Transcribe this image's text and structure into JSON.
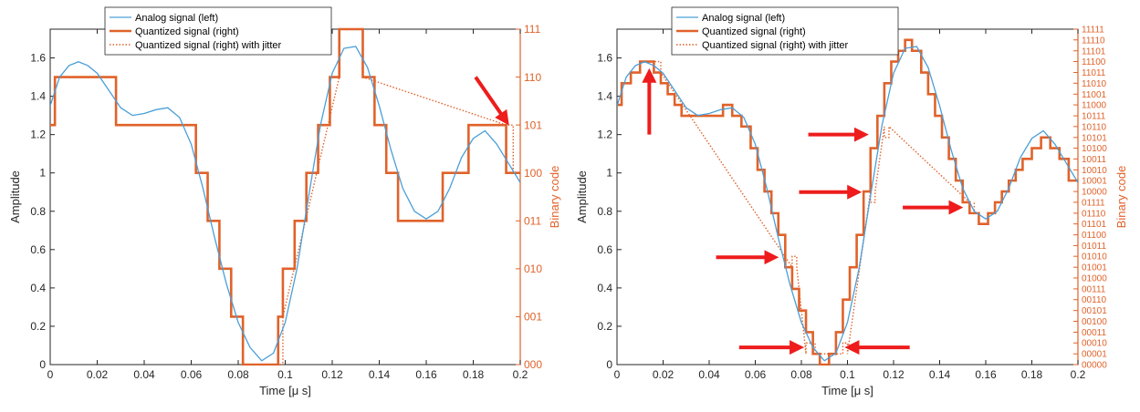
{
  "colors": {
    "analog": "#4a9fd8",
    "quantized": "#e0622a",
    "right_axis": "#e0622a",
    "axis": "#262626",
    "arrow": "#ee1c1c"
  },
  "chart_data": [
    {
      "type": "line",
      "panel": "left",
      "xlabel": "Time [μ s]",
      "ylabel": "Amplitude",
      "ylabel_right": "Binary code",
      "xlim": [
        0,
        0.2
      ],
      "ylim": [
        0,
        1.75
      ],
      "grid": false,
      "legend_position": "top-left",
      "x_ticks": [
        "0",
        "0.02",
        "0.04",
        "0.06",
        "0.08",
        "0.1",
        "0.12",
        "0.14",
        "0.16",
        "0.18",
        "0.2"
      ],
      "x_tick_values": [
        0,
        0.02,
        0.04,
        0.06,
        0.08,
        0.1,
        0.12,
        0.14,
        0.16,
        0.18,
        0.2
      ],
      "y_ticks": [
        "0",
        "0.2",
        "0.4",
        "0.6",
        "0.8",
        "1",
        "1.2",
        "1.4",
        "1.6"
      ],
      "y_tick_values": [
        0,
        0.2,
        0.4,
        0.6,
        0.8,
        1,
        1.2,
        1.4,
        1.6
      ],
      "right_ticks": [
        "000",
        "001",
        "010",
        "011",
        "100",
        "101",
        "110",
        "111"
      ],
      "right_tick_values": [
        0,
        0.25,
        0.5,
        0.75,
        1.0,
        1.25,
        1.5,
        1.75
      ],
      "series": [
        {
          "name": "Analog signal (left)",
          "style": "solid-thin",
          "x": [
            0,
            0.004,
            0.008,
            0.012,
            0.016,
            0.02,
            0.025,
            0.03,
            0.035,
            0.04,
            0.045,
            0.05,
            0.055,
            0.06,
            0.065,
            0.07,
            0.075,
            0.08,
            0.085,
            0.09,
            0.095,
            0.1,
            0.105,
            0.11,
            0.115,
            0.12,
            0.125,
            0.13,
            0.135,
            0.14,
            0.145,
            0.15,
            0.155,
            0.16,
            0.165,
            0.17,
            0.175,
            0.18,
            0.185,
            0.19,
            0.195,
            0.2
          ],
          "y": [
            1.35,
            1.5,
            1.56,
            1.58,
            1.56,
            1.52,
            1.43,
            1.34,
            1.3,
            1.31,
            1.33,
            1.34,
            1.29,
            1.15,
            0.92,
            0.66,
            0.42,
            0.22,
            0.09,
            0.02,
            0.06,
            0.22,
            0.5,
            0.88,
            1.25,
            1.52,
            1.65,
            1.66,
            1.55,
            1.35,
            1.12,
            0.92,
            0.8,
            0.76,
            0.8,
            0.92,
            1.08,
            1.18,
            1.22,
            1.15,
            1.05,
            0.95
          ]
        },
        {
          "name": "Quantized signal (right)",
          "style": "solid-thick",
          "x": [
            0,
            0.002,
            0.002,
            0.028,
            0.028,
            0.062,
            0.062,
            0.067,
            0.067,
            0.072,
            0.072,
            0.077,
            0.077,
            0.082,
            0.082,
            0.084,
            0.084,
            0.097,
            0.097,
            0.099,
            0.099,
            0.104,
            0.104,
            0.109,
            0.109,
            0.114,
            0.114,
            0.119,
            0.119,
            0.123,
            0.123,
            0.133,
            0.133,
            0.138,
            0.138,
            0.143,
            0.143,
            0.148,
            0.148,
            0.167,
            0.167,
            0.178,
            0.178,
            0.194,
            0.194,
            0.2
          ],
          "y": [
            1.25,
            1.25,
            1.5,
            1.5,
            1.25,
            1.25,
            1.0,
            1.0,
            0.75,
            0.75,
            0.5,
            0.5,
            0.25,
            0.25,
            0.0,
            0.0,
            0.0,
            0.0,
            0.25,
            0.25,
            0.5,
            0.5,
            0.75,
            0.75,
            1.0,
            1.0,
            1.25,
            1.25,
            1.5,
            1.5,
            1.75,
            1.75,
            1.5,
            1.5,
            1.25,
            1.25,
            1.0,
            1.0,
            0.75,
            0.75,
            1.0,
            1.0,
            1.25,
            1.25,
            1.0,
            1.0
          ]
        },
        {
          "name": "Quantized signal (right) with jitter",
          "style": "dotted",
          "x": [
            0.082,
            0.082,
            0.099,
            0.099,
            0.123,
            0.123,
            0.133,
            0.133,
            0.194,
            0.194,
            0.197,
            0.197
          ],
          "y": [
            0.25,
            0.0,
            0.0,
            0.25,
            1.5,
            1.75,
            1.75,
            1.5,
            1.25,
            1.25,
            1.25,
            1.0
          ]
        }
      ],
      "annotations": [
        {
          "type": "arrow",
          "from": [
            0.181,
            1.5
          ],
          "to": [
            0.194,
            1.27
          ]
        }
      ]
    },
    {
      "type": "line",
      "panel": "right",
      "xlabel": "Time [μ s]",
      "ylabel": "Amplitude",
      "ylabel_right": "Binary code",
      "xlim": [
        0,
        0.2
      ],
      "ylim": [
        0,
        1.75
      ],
      "grid": false,
      "legend_position": "top-left",
      "x_ticks": [
        "0",
        "0.02",
        "0.04",
        "0.06",
        "0.08",
        "0.1",
        "0.12",
        "0.14",
        "0.16",
        "0.18",
        "0.2"
      ],
      "x_tick_values": [
        0,
        0.02,
        0.04,
        0.06,
        0.08,
        0.1,
        0.12,
        0.14,
        0.16,
        0.18,
        0.2
      ],
      "y_ticks": [
        "0",
        "0.2",
        "0.4",
        "0.6",
        "0.8",
        "1",
        "1.2",
        "1.4",
        "1.6"
      ],
      "y_tick_values": [
        0,
        0.2,
        0.4,
        0.6,
        0.8,
        1,
        1.2,
        1.4,
        1.6
      ],
      "right_ticks": [
        "00000",
        "00001",
        "00010",
        "00011",
        "00100",
        "00101",
        "00110",
        "00111",
        "01000",
        "01001",
        "01010",
        "01011",
        "01100",
        "01101",
        "01110",
        "01111",
        "10000",
        "10001",
        "10010",
        "10011",
        "10100",
        "10101",
        "10110",
        "10111",
        "11000",
        "11001",
        "11010",
        "11011",
        "11100",
        "11101",
        "11110",
        "11111"
      ],
      "right_tick_values": [
        0.0,
        0.056,
        0.113,
        0.169,
        0.226,
        0.282,
        0.339,
        0.395,
        0.452,
        0.508,
        0.565,
        0.621,
        0.677,
        0.734,
        0.79,
        0.847,
        0.903,
        0.96,
        1.016,
        1.073,
        1.129,
        1.185,
        1.242,
        1.298,
        1.355,
        1.411,
        1.468,
        1.524,
        1.581,
        1.637,
        1.694,
        1.75
      ],
      "series": [
        {
          "name": "Analog signal (left)",
          "style": "solid-thin",
          "x": [
            0,
            0.004,
            0.008,
            0.012,
            0.016,
            0.02,
            0.025,
            0.03,
            0.035,
            0.04,
            0.045,
            0.05,
            0.055,
            0.06,
            0.065,
            0.07,
            0.075,
            0.08,
            0.085,
            0.09,
            0.095,
            0.1,
            0.105,
            0.11,
            0.115,
            0.12,
            0.125,
            0.13,
            0.135,
            0.14,
            0.145,
            0.15,
            0.155,
            0.16,
            0.165,
            0.17,
            0.175,
            0.18,
            0.185,
            0.19,
            0.195,
            0.2
          ],
          "y": [
            1.35,
            1.5,
            1.56,
            1.58,
            1.56,
            1.52,
            1.43,
            1.34,
            1.3,
            1.31,
            1.33,
            1.34,
            1.29,
            1.15,
            0.92,
            0.66,
            0.42,
            0.22,
            0.09,
            0.02,
            0.06,
            0.22,
            0.5,
            0.88,
            1.25,
            1.52,
            1.65,
            1.66,
            1.55,
            1.35,
            1.12,
            0.92,
            0.8,
            0.76,
            0.8,
            0.92,
            1.08,
            1.18,
            1.22,
            1.15,
            1.05,
            0.95
          ]
        },
        {
          "name": "Quantized signal (right)",
          "style": "solid-thick",
          "x": [
            0,
            0.002,
            0.002,
            0.006,
            0.006,
            0.01,
            0.01,
            0.016,
            0.016,
            0.019,
            0.019,
            0.022,
            0.022,
            0.025,
            0.025,
            0.028,
            0.028,
            0.032,
            0.032,
            0.046,
            0.046,
            0.05,
            0.05,
            0.054,
            0.054,
            0.058,
            0.058,
            0.061,
            0.061,
            0.064,
            0.064,
            0.067,
            0.067,
            0.07,
            0.07,
            0.073,
            0.073,
            0.076,
            0.076,
            0.079,
            0.079,
            0.082,
            0.082,
            0.085,
            0.085,
            0.088,
            0.088,
            0.092,
            0.092,
            0.095,
            0.095,
            0.098,
            0.098,
            0.101,
            0.101,
            0.104,
            0.104,
            0.107,
            0.107,
            0.11,
            0.11,
            0.113,
            0.113,
            0.116,
            0.116,
            0.119,
            0.119,
            0.122,
            0.122,
            0.125,
            0.125,
            0.128,
            0.128,
            0.132,
            0.132,
            0.135,
            0.135,
            0.138,
            0.138,
            0.141,
            0.141,
            0.144,
            0.144,
            0.147,
            0.147,
            0.15,
            0.15,
            0.153,
            0.153,
            0.157,
            0.157,
            0.161,
            0.161,
            0.164,
            0.164,
            0.167,
            0.167,
            0.17,
            0.17,
            0.173,
            0.173,
            0.176,
            0.176,
            0.18,
            0.18,
            0.184,
            0.184,
            0.188,
            0.188,
            0.192,
            0.192,
            0.196,
            0.196,
            0.2
          ],
          "y": [
            1.355,
            1.355,
            1.468,
            1.468,
            1.524,
            1.524,
            1.581,
            1.581,
            1.524,
            1.524,
            1.468,
            1.468,
            1.411,
            1.411,
            1.355,
            1.355,
            1.298,
            1.298,
            1.298,
            1.298,
            1.355,
            1.355,
            1.298,
            1.298,
            1.242,
            1.242,
            1.129,
            1.129,
            1.016,
            1.016,
            0.903,
            0.903,
            0.79,
            0.79,
            0.677,
            0.677,
            0.508,
            0.508,
            0.395,
            0.395,
            0.282,
            0.282,
            0.169,
            0.169,
            0.056,
            0.056,
            0.0,
            0.0,
            0.056,
            0.056,
            0.169,
            0.169,
            0.339,
            0.339,
            0.508,
            0.508,
            0.677,
            0.677,
            0.903,
            0.903,
            1.129,
            1.129,
            1.298,
            1.298,
            1.468,
            1.468,
            1.581,
            1.581,
            1.637,
            1.637,
            1.694,
            1.694,
            1.637,
            1.637,
            1.524,
            1.524,
            1.411,
            1.411,
            1.298,
            1.298,
            1.185,
            1.185,
            1.073,
            1.073,
            0.96,
            0.96,
            0.847,
            0.847,
            0.79,
            0.79,
            0.734,
            0.734,
            0.79,
            0.79,
            0.847,
            0.847,
            0.903,
            0.903,
            0.96,
            0.96,
            1.016,
            1.016,
            1.073,
            1.073,
            1.129,
            1.129,
            1.185,
            1.185,
            1.129,
            1.129,
            1.073,
            1.073,
            0.96,
            0.96
          ]
        },
        {
          "name": "Quantized signal (right) with jitter",
          "style": "dotted",
          "x": [
            0.01,
            0.01,
            0.019,
            0.019,
            0.076,
            0.076,
            0.078,
            0.078,
            0.082,
            0.082,
            0.086,
            0.086,
            0.098,
            0.098,
            0.1,
            0.1,
            0.11,
            0.11,
            0.112,
            0.112,
            0.116,
            0.116,
            0.118,
            0.118,
            0.153,
            0.153,
            0.155,
            0.155
          ],
          "y": [
            1.524,
            1.581,
            1.581,
            1.524,
            0.508,
            0.565,
            0.565,
            0.508,
            0.056,
            0.113,
            0.113,
            0.056,
            0.056,
            0.113,
            0.113,
            0.056,
            0.903,
            0.847,
            0.847,
            0.903,
            1.242,
            1.185,
            1.185,
            1.242,
            0.847,
            0.79,
            0.79,
            0.847
          ]
        }
      ],
      "annotations": [
        {
          "type": "arrow",
          "from": [
            0.014,
            1.2
          ],
          "to": [
            0.014,
            1.52
          ]
        },
        {
          "type": "arrow",
          "from": [
            0.083,
            1.2
          ],
          "to": [
            0.107,
            1.2
          ]
        },
        {
          "type": "arrow",
          "from": [
            0.079,
            0.9
          ],
          "to": [
            0.104,
            0.9
          ]
        },
        {
          "type": "arrow",
          "from": [
            0.124,
            0.82
          ],
          "to": [
            0.148,
            0.82
          ]
        },
        {
          "type": "arrow",
          "from": [
            0.043,
            0.56
          ],
          "to": [
            0.068,
            0.56
          ]
        },
        {
          "type": "arrow",
          "from": [
            0.053,
            0.09
          ],
          "to": [
            0.079,
            0.09
          ]
        },
        {
          "type": "arrow",
          "from": [
            0.127,
            0.09
          ],
          "to": [
            0.101,
            0.09
          ]
        }
      ]
    }
  ]
}
